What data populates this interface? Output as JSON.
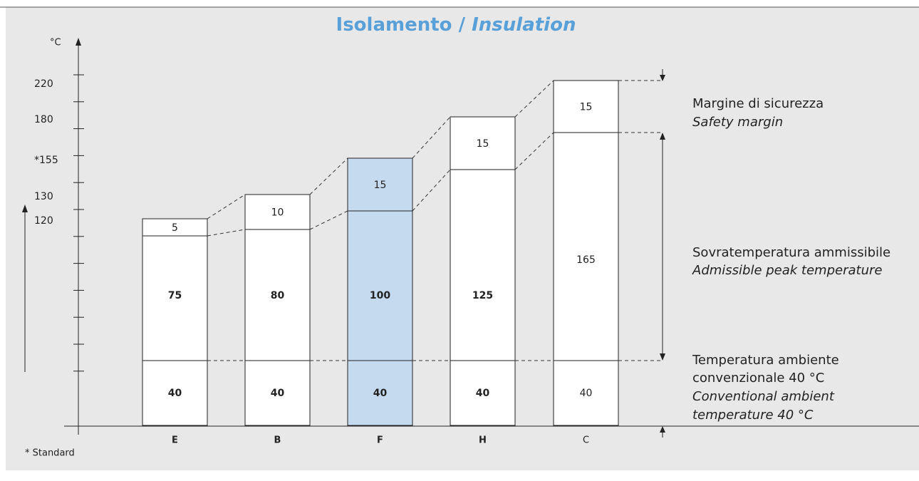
{
  "title": {
    "main": "Isolamento /",
    "italic": "Insulation"
  },
  "axis": {
    "unit": "°C",
    "labels": [
      "220",
      "180",
      "*155",
      "130",
      "120"
    ]
  },
  "columns": [
    {
      "label": "E",
      "ambient": 40,
      "rise": 75,
      "margin": 5
    },
    {
      "label": "B",
      "ambient": 40,
      "rise": 80,
      "margin": 10
    },
    {
      "label": "F",
      "ambient": 40,
      "rise": 100,
      "margin": 15
    },
    {
      "label": "H",
      "ambient": 40,
      "rise": 125,
      "margin": 15
    },
    {
      "label": "C",
      "ambient": 40,
      "rise": 165,
      "margin": 15
    }
  ],
  "legend": {
    "margin": [
      "Margine di sicurezza",
      "Safety margin"
    ],
    "rise": [
      "Sovratemperatura ammissibile",
      "Admissible peak temperature"
    ],
    "ambient": [
      "Temperatura ambiente",
      "convenzionale 40 °C",
      "Conventional ambient",
      "temperature 40 °C"
    ]
  },
  "footnote": "* Standard"
}
